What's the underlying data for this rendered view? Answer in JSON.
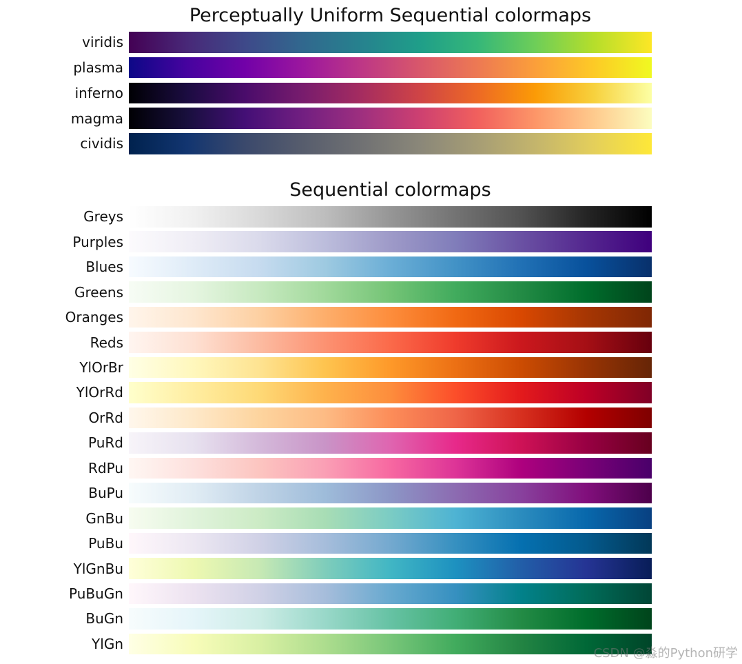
{
  "chart_data": [
    {
      "type": "colormap",
      "title": "Perceptually Uniform Sequential colormaps",
      "maps": [
        {
          "name": "viridis",
          "stops": [
            "#440154",
            "#482878",
            "#3e4989",
            "#31688e",
            "#26828e",
            "#1f9e89",
            "#35b779",
            "#6ece58",
            "#b5de2b",
            "#fde725"
          ]
        },
        {
          "name": "plasma",
          "stops": [
            "#0d0887",
            "#46039f",
            "#7201a8",
            "#9c179e",
            "#bd3786",
            "#d8576b",
            "#ed7953",
            "#fb9f3a",
            "#fdca26",
            "#f0f921"
          ]
        },
        {
          "name": "inferno",
          "stops": [
            "#000004",
            "#1b0c41",
            "#4a0c6b",
            "#781c6d",
            "#a52c60",
            "#cf4446",
            "#ed6925",
            "#fb9b06",
            "#f7d13d",
            "#fcffa4"
          ]
        },
        {
          "name": "magma",
          "stops": [
            "#000004",
            "#180f3d",
            "#440f76",
            "#721f81",
            "#9e2f7f",
            "#cd4071",
            "#f1605d",
            "#fd9668",
            "#feca8d",
            "#fcfdbf"
          ]
        },
        {
          "name": "cividis",
          "stops": [
            "#00224e",
            "#123570",
            "#3b496c",
            "#575d6d",
            "#707173",
            "#8a8779",
            "#a69d75",
            "#c4b56c",
            "#e4cf5b",
            "#fee838"
          ]
        }
      ]
    },
    {
      "type": "colormap",
      "title": "Sequential colormaps",
      "maps": [
        {
          "name": "Greys",
          "stops": [
            "#ffffff",
            "#f0f0f0",
            "#d9d9d9",
            "#bdbdbd",
            "#969696",
            "#737373",
            "#525252",
            "#252525",
            "#000000"
          ]
        },
        {
          "name": "Purples",
          "stops": [
            "#fcfbfd",
            "#efedf5",
            "#dadaeb",
            "#bcbddc",
            "#9e9ac8",
            "#807dba",
            "#6a51a3",
            "#54278f",
            "#3f007d"
          ]
        },
        {
          "name": "Blues",
          "stops": [
            "#f7fbff",
            "#deebf7",
            "#c6dbef",
            "#9ecae1",
            "#6baed6",
            "#4292c6",
            "#2171b5",
            "#08519c",
            "#08306b"
          ]
        },
        {
          "name": "Greens",
          "stops": [
            "#f7fcf5",
            "#e5f5e0",
            "#c7e9c0",
            "#a1d99b",
            "#74c476",
            "#41ab5d",
            "#238b45",
            "#006d2c",
            "#00441b"
          ]
        },
        {
          "name": "Oranges",
          "stops": [
            "#fff5eb",
            "#fee6ce",
            "#fdd0a2",
            "#fdae6b",
            "#fd8d3c",
            "#f16913",
            "#d94801",
            "#a63603",
            "#7f2704"
          ]
        },
        {
          "name": "Reds",
          "stops": [
            "#fff5f0",
            "#fee0d2",
            "#fcbba1",
            "#fc9272",
            "#fb6a4a",
            "#ef3b2c",
            "#cb181d",
            "#a50f15",
            "#67000d"
          ]
        },
        {
          "name": "YlOrBr",
          "stops": [
            "#ffffe5",
            "#fff7bc",
            "#fee391",
            "#fec44f",
            "#fe9929",
            "#ec7014",
            "#cc4c02",
            "#993404",
            "#662506"
          ]
        },
        {
          "name": "YlOrRd",
          "stops": [
            "#ffffcc",
            "#ffeda0",
            "#fed976",
            "#feb24c",
            "#fd8d3c",
            "#fc4e2a",
            "#e31a1c",
            "#bd0026",
            "#800026"
          ]
        },
        {
          "name": "OrRd",
          "stops": [
            "#fff7ec",
            "#fee8c8",
            "#fdd49e",
            "#fdbb84",
            "#fc8d59",
            "#ef6548",
            "#d7301f",
            "#b30000",
            "#7f0000"
          ]
        },
        {
          "name": "PuRd",
          "stops": [
            "#f7f4f9",
            "#e7e1ef",
            "#d4b9da",
            "#c994c7",
            "#df65b0",
            "#e7298a",
            "#ce1256",
            "#980043",
            "#67001f"
          ]
        },
        {
          "name": "RdPu",
          "stops": [
            "#fff7f3",
            "#fde0dd",
            "#fcc5c0",
            "#fa9fb5",
            "#f768a1",
            "#dd3497",
            "#ae017e",
            "#7a0177",
            "#49006a"
          ]
        },
        {
          "name": "BuPu",
          "stops": [
            "#f7fcfd",
            "#e0ecf4",
            "#bfd3e6",
            "#9ebcda",
            "#8c96c6",
            "#8c6bb1",
            "#88419d",
            "#810f7c",
            "#4d004b"
          ]
        },
        {
          "name": "GnBu",
          "stops": [
            "#f7fcf0",
            "#e0f3db",
            "#ccebc5",
            "#a8ddb5",
            "#7bccc4",
            "#4eb3d3",
            "#2b8cbe",
            "#0868ac",
            "#084081"
          ]
        },
        {
          "name": "PuBu",
          "stops": [
            "#fff7fb",
            "#ece7f2",
            "#d0d1e6",
            "#a6bddb",
            "#74a9cf",
            "#3690c0",
            "#0570b0",
            "#045a8d",
            "#023858"
          ]
        },
        {
          "name": "YlGnBu",
          "stops": [
            "#ffffd9",
            "#edf8b1",
            "#c7e9b4",
            "#7fcdbb",
            "#41b6c4",
            "#1d91c0",
            "#225ea8",
            "#253494",
            "#081d58"
          ]
        },
        {
          "name": "PuBuGn",
          "stops": [
            "#fff7fb",
            "#ece2f0",
            "#d0d1e6",
            "#a6bddb",
            "#67a9cf",
            "#3690c0",
            "#02818a",
            "#016c59",
            "#014636"
          ]
        },
        {
          "name": "BuGn",
          "stops": [
            "#f7fcfd",
            "#e5f5f9",
            "#ccece6",
            "#99d8c9",
            "#66c2a4",
            "#41ae76",
            "#238b45",
            "#006d2c",
            "#00441b"
          ]
        },
        {
          "name": "YlGn",
          "stops": [
            "#ffffe5",
            "#f7fcb9",
            "#d9f0a3",
            "#addd8e",
            "#78c679",
            "#41ab5d",
            "#238443",
            "#006837",
            "#004529"
          ]
        }
      ]
    }
  ],
  "watermark": "CSDN @淼的Python研学"
}
